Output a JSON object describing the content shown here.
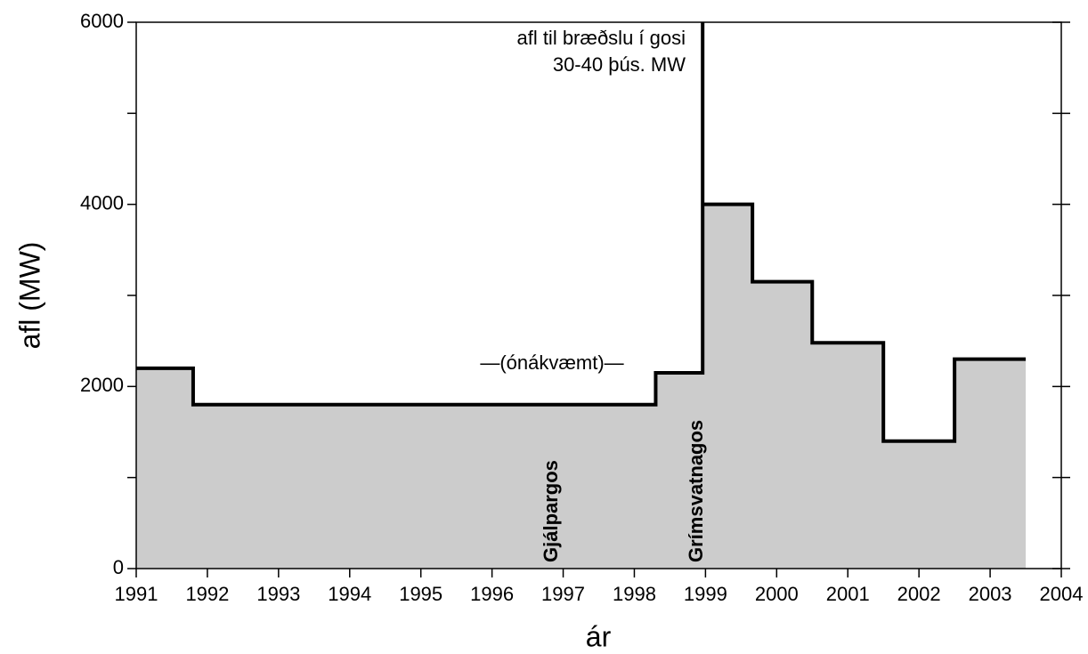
{
  "chart_data": {
    "type": "step-area",
    "x_label": "ár",
    "y_label": "afl (MW)",
    "x": [
      1991,
      1991.8,
      1991.8,
      1998.3,
      1998.3,
      1998.96,
      1998.96,
      1998.96,
      1999.66,
      1999.66,
      2000.5,
      2000.5,
      2001.5,
      2001.5,
      2002.5,
      2002.5,
      2003.5
    ],
    "values": [
      2200,
      2200,
      1800,
      1800,
      2150,
      2150,
      6000,
      4000,
      4000,
      3150,
      3150,
      2480,
      2480,
      1400,
      1400,
      2300,
      2300
    ],
    "color": "#000000",
    "fill_color": "#cccccc",
    "xlim": [
      1991,
      2004
    ],
    "ylim": [
      0,
      6000
    ],
    "xticks": [
      1991,
      1992,
      1993,
      1994,
      1995,
      1996,
      1997,
      1998,
      1999,
      2000,
      2001,
      2002,
      2003,
      2004
    ],
    "yticks": [
      0,
      2000,
      4000,
      6000
    ],
    "yminor_ticks": [
      1000,
      3000,
      5000
    ],
    "annotations": [
      "afl til bræðslu í gosi",
      "30-40 þús. MW",
      "—(ónákvæmt)—",
      "Gjálpargos",
      "Grímsvatnagos"
    ]
  }
}
